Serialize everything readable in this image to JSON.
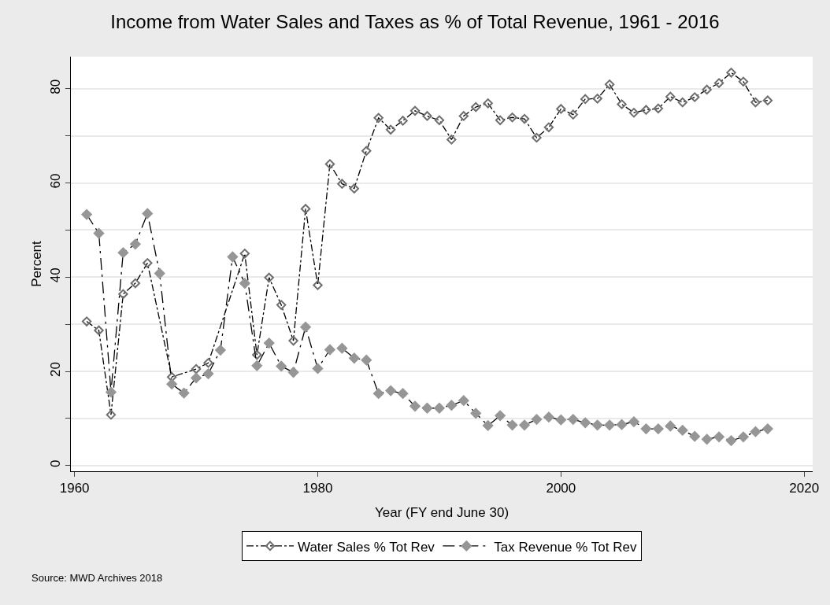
{
  "chart_data": {
    "type": "line",
    "title": "Income from Water Sales and Taxes as % of Total Revenue, 1961 - 2016",
    "xlabel": "Year (FY end June 30)",
    "ylabel": "Percent",
    "x": [
      1961,
      1962,
      1963,
      1964,
      1965,
      1966,
      1967,
      1968,
      1969,
      1970,
      1971,
      1972,
      1973,
      1974,
      1975,
      1976,
      1977,
      1978,
      1979,
      1980,
      1981,
      1982,
      1983,
      1984,
      1985,
      1986,
      1987,
      1988,
      1989,
      1990,
      1991,
      1992,
      1993,
      1994,
      1995,
      1996,
      1997,
      1998,
      1999,
      2000,
      2001,
      2002,
      2003,
      2004,
      2005,
      2006,
      2007,
      2008,
      2009,
      2010,
      2011,
      2012,
      2013,
      2014,
      2015,
      2016,
      2017
    ],
    "series": [
      {
        "name": "Water Sales % Tot Rev",
        "color": "#6e6e6e",
        "line_style": "dashdot",
        "marker": "diamond-open",
        "values": [
          30.6,
          28.7,
          10.8,
          36.4,
          38.7,
          43.0,
          null,
          18.8,
          null,
          20.5,
          21.8,
          null,
          null,
          45.0,
          23.5,
          39.9,
          34.1,
          26.5,
          54.5,
          38.3,
          64.0,
          59.8,
          58.8,
          66.8,
          73.8,
          71.3,
          73.2,
          75.3,
          74.2,
          73.3,
          69.2,
          74.2,
          76.1,
          76.9,
          73.3,
          73.9,
          73.6,
          69.6,
          71.8,
          75.7,
          74.5,
          77.8,
          77.9,
          80.9,
          76.7,
          74.9,
          75.5,
          75.8,
          78.3,
          77.1,
          78.2,
          79.8,
          81.2,
          83.4,
          81.5,
          77.1,
          77.5
        ]
      },
      {
        "name": "Tax Revenue % Tot Rev",
        "color": "#969696",
        "line_style": "longdashdot",
        "marker": "diamond",
        "values": [
          53.3,
          49.3,
          15.6,
          45.2,
          47.0,
          53.5,
          40.8,
          17.3,
          15.4,
          18.6,
          19.5,
          24.5,
          44.3,
          38.7,
          21.2,
          26.0,
          21.1,
          19.8,
          29.4,
          20.6,
          24.6,
          24.9,
          22.8,
          22.4,
          15.3,
          15.9,
          15.3,
          12.6,
          12.2,
          12.2,
          12.8,
          13.8,
          11.1,
          8.5,
          10.6,
          8.6,
          8.6,
          9.8,
          10.3,
          9.7,
          9.8,
          9.1,
          8.6,
          8.6,
          8.7,
          9.3,
          7.8,
          7.8,
          8.4,
          7.5,
          6.2,
          5.6,
          6.1,
          5.3,
          6.1,
          7.2,
          7.8
        ]
      }
    ],
    "xlim": [
      1959.7,
      2020.7
    ],
    "xticks": [
      1960,
      1980,
      2000,
      2020
    ],
    "ylim": [
      -1.2,
      86.8
    ],
    "yticks": [
      0,
      {
        "value": 10,
        "label": null
      },
      20,
      {
        "value": 30,
        "label": null
      },
      40,
      {
        "value": 50,
        "label": null
      },
      60,
      {
        "value": 70,
        "label": null
      },
      80
    ],
    "grid": "y",
    "legend": "bottom",
    "annotations": [
      "Source: MWD Archives 2018"
    ]
  }
}
